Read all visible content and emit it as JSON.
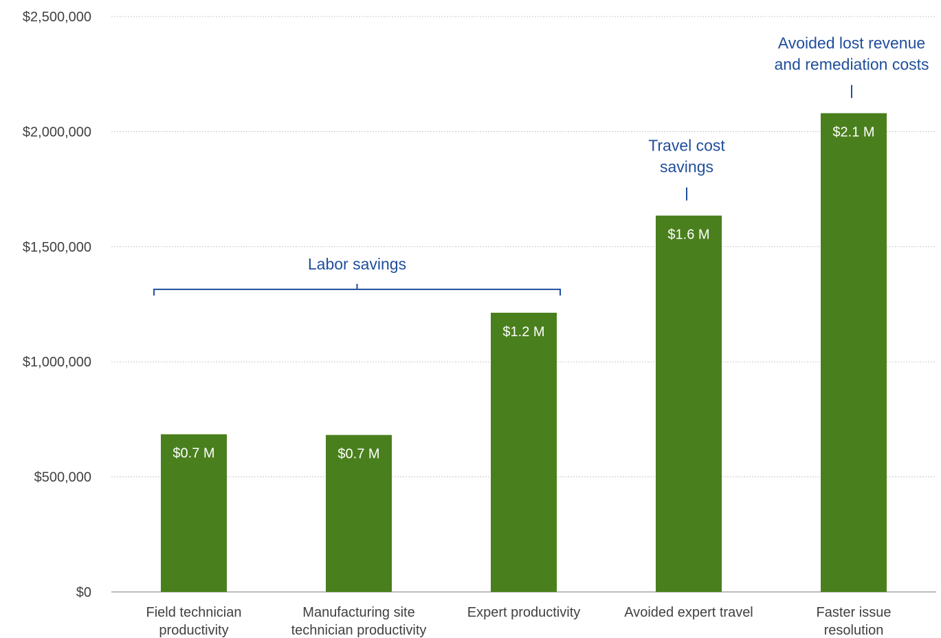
{
  "chart_data": {
    "type": "bar",
    "categories": [
      [
        "Field technician",
        "productivity"
      ],
      [
        "Manufacturing site",
        "technician productivity"
      ],
      [
        "Expert productivity"
      ],
      [
        "Avoided expert travel"
      ],
      [
        "Faster issue",
        "resolution"
      ]
    ],
    "values": [
      685000,
      682000,
      1213000,
      1635000,
      2080000
    ],
    "data_labels": [
      "$0.7 M",
      "$0.7 M",
      "$1.2 M",
      "$1.6 M",
      "$2.1 M"
    ],
    "ylim": [
      0,
      2500000
    ],
    "yticks": [
      0,
      500000,
      1000000,
      1500000,
      2000000,
      2500000
    ],
    "ytick_labels": [
      "$0",
      "$500,000",
      "$1,000,000",
      "$1,500,000",
      "$2,000,000",
      "$2,500,000"
    ],
    "grid": true,
    "bar_color": "#4a7f1d",
    "annotation_color": "#1f4e9b",
    "annotations": [
      {
        "lines": [
          "Labor savings"
        ],
        "style": "bracket",
        "span": [
          0,
          2
        ]
      },
      {
        "lines": [
          "Travel cost",
          "savings"
        ],
        "style": "tick",
        "span": [
          3,
          3
        ]
      },
      {
        "lines": [
          "Avoided lost revenue",
          "and remediation costs"
        ],
        "style": "tick",
        "span": [
          4,
          4
        ]
      }
    ]
  }
}
